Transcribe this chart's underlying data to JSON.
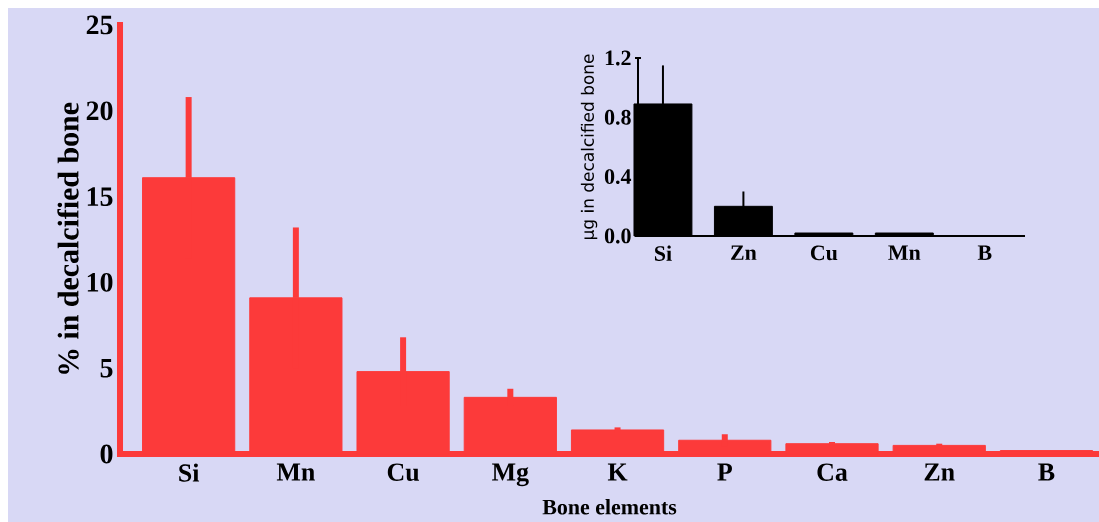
{
  "chart_data": [
    {
      "type": "bar",
      "ylabel": "% in decalcified bone",
      "xlabel": "Bone elements",
      "categories": [
        "Si",
        "Mn",
        "Cu",
        "Mg",
        "K",
        "P",
        "Ca",
        "Zn",
        "B"
      ],
      "values": [
        16.1,
        9.1,
        4.8,
        3.3,
        1.4,
        0.8,
        0.6,
        0.5,
        0.2
      ],
      "errors": [
        4.7,
        4.1,
        2.0,
        0.5,
        0.15,
        0.35,
        0.1,
        0.1,
        null
      ],
      "color": "#fc3a3a",
      "ylim": [
        0,
        25
      ],
      "yticks": [
        0,
        5,
        10,
        15,
        20,
        25
      ]
    },
    {
      "type": "bar",
      "ylabel": "μg in decalcified bone",
      "categories": [
        "Si",
        "Zn",
        "Cu",
        "Mn",
        "B"
      ],
      "values": [
        0.89,
        0.2,
        0.02,
        0.02,
        0
      ],
      "errors": [
        0.26,
        0.1,
        null,
        null,
        null
      ],
      "color": "#000000",
      "ylim": [
        0,
        1.2
      ],
      "yticks": [
        {
          "value": 0,
          "label": "0.0"
        },
        {
          "value": 0.4,
          "label": "0.4"
        },
        {
          "value": 0.8,
          "label": "0.8"
        },
        {
          "value": 1.2,
          "label": "1.2"
        }
      ]
    }
  ]
}
